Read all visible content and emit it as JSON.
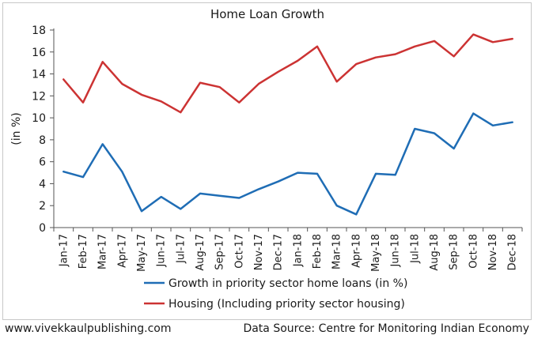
{
  "chart_data": {
    "type": "line",
    "title": "Home Loan Growth",
    "ylabel": "(in %)",
    "xlabel": "",
    "ylim": [
      0,
      18
    ],
    "yticks": [
      0,
      2,
      4,
      6,
      8,
      10,
      12,
      14,
      16,
      18
    ],
    "grid": false,
    "legend_position": "bottom",
    "categories": [
      "Jan-17",
      "Feb-17",
      "Mar-17",
      "Apr-17",
      "May-17",
      "Jun-17",
      "Jul-17",
      "Aug-17",
      "Sep-17",
      "Oct-17",
      "Nov-17",
      "Dec-17",
      "Jan-18",
      "Feb-18",
      "Mar-18",
      "Apr-18",
      "May-18",
      "Jun-18",
      "Jul-18",
      "Aug-18",
      "Sep-18",
      "Oct-18",
      "Nov-18",
      "Dec-18"
    ],
    "series": [
      {
        "name": "Growth in priority sector home loans (in %)",
        "color": "#1f6db5",
        "values": [
          5.1,
          4.6,
          7.6,
          5.1,
          1.5,
          2.8,
          1.7,
          3.1,
          2.9,
          2.7,
          3.5,
          4.2,
          5.0,
          4.9,
          2.0,
          1.2,
          4.9,
          4.8,
          9.0,
          8.6,
          7.2,
          10.4,
          9.3,
          9.6
        ]
      },
      {
        "name": "Housing (Including priority sector housing)",
        "color": "#cc3333",
        "values": [
          13.5,
          11.4,
          15.1,
          13.1,
          12.1,
          11.5,
          10.5,
          13.2,
          12.8,
          11.4,
          13.1,
          14.2,
          15.2,
          16.5,
          13.3,
          14.9,
          15.5,
          15.8,
          16.5,
          17.0,
          15.6,
          17.6,
          16.9,
          17.2
        ]
      }
    ]
  },
  "footer": {
    "left": "www.vivekkaulpublishing.com",
    "right": "Data Source: Centre for Monitoring Indian Economy"
  }
}
